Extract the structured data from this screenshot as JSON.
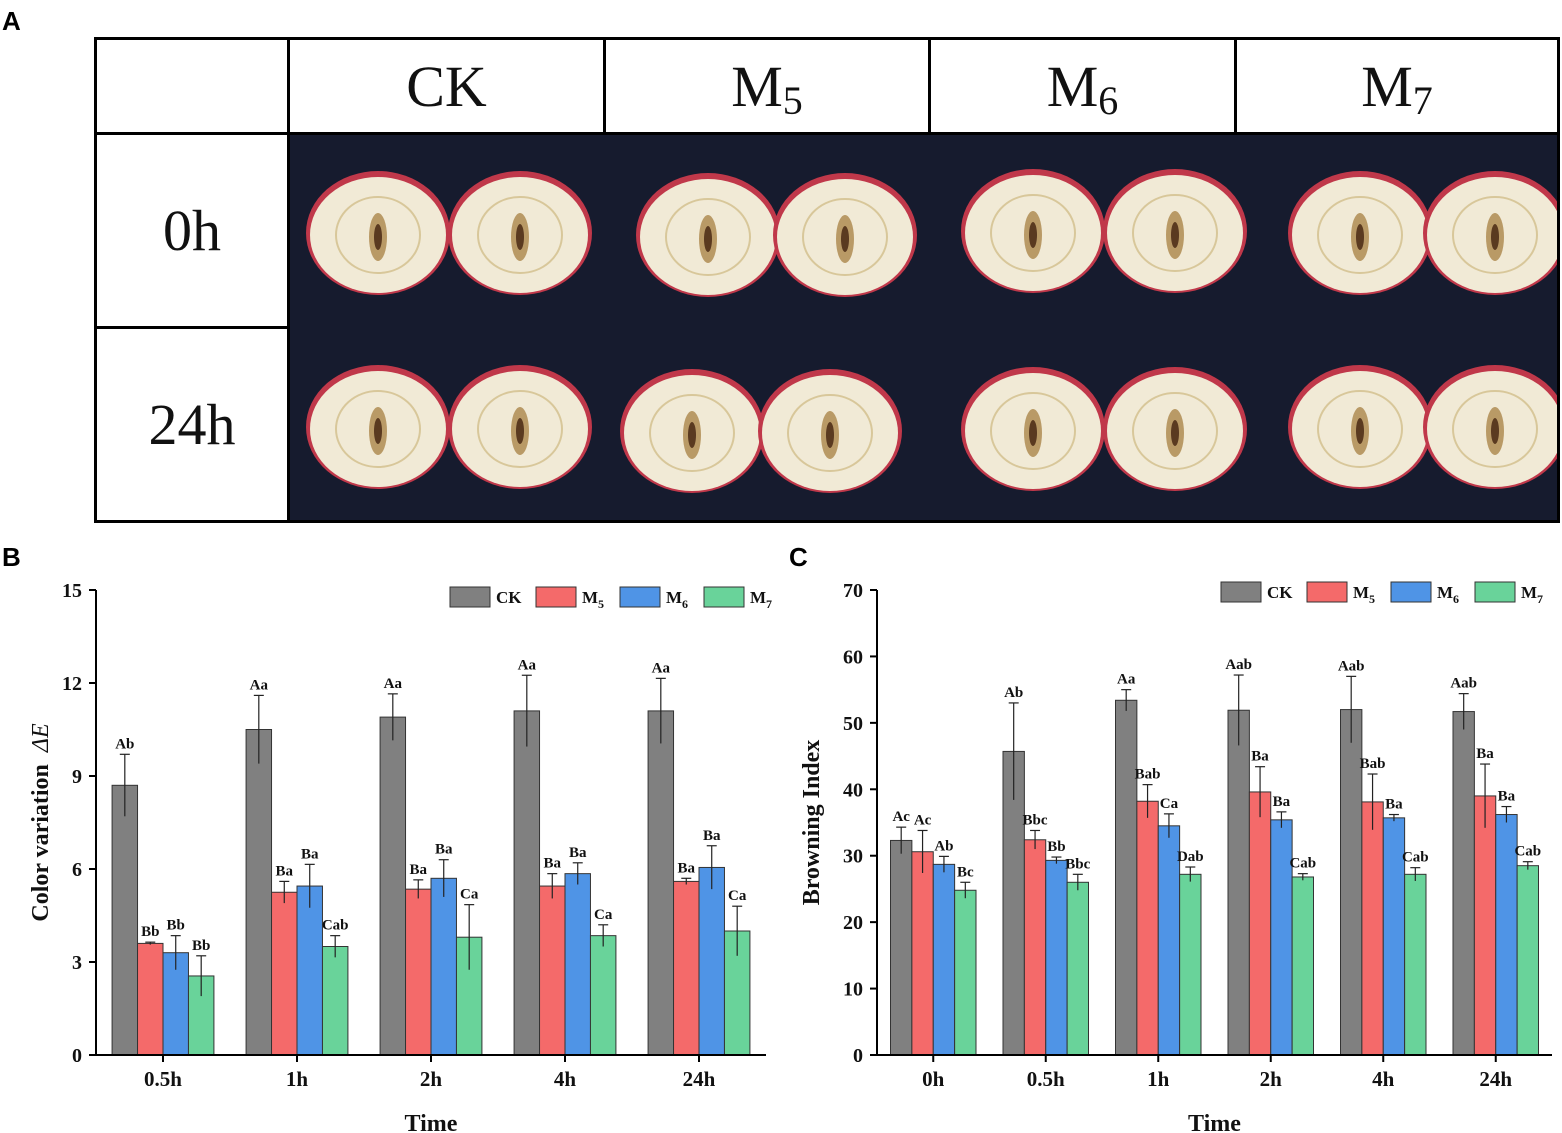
{
  "panels": {
    "a": "A",
    "b": "B",
    "c": "C"
  },
  "photo_table": {
    "columns": [
      "CK",
      "M5",
      "M6",
      "M7"
    ],
    "column_subscripts": [
      "",
      "5",
      "6",
      "7"
    ],
    "column_bases": [
      "CK",
      "M",
      "M",
      "M"
    ],
    "rows": [
      "0h",
      "24h"
    ],
    "colors": {
      "background": "#161b2e",
      "flesh": "#f1ead6",
      "skin": "#c0384a"
    }
  },
  "legend": {
    "entries": [
      {
        "base": "CK",
        "sub": ""
      },
      {
        "base": "M",
        "sub": "5"
      },
      {
        "base": "M",
        "sub": "6"
      },
      {
        "base": "M",
        "sub": "7"
      }
    ],
    "colors": [
      "#808080",
      "#f46a6a",
      "#4f94e6",
      "#69d39a"
    ]
  },
  "chart_data": [
    {
      "type": "bar",
      "panel": "B",
      "title": "",
      "xlabel": "Time",
      "ylabel": "Color variation",
      "ylabel_symbol": "ΔE",
      "ylim": [
        0,
        15
      ],
      "yticks": [
        0,
        3,
        6,
        9,
        12,
        15
      ],
      "categories": [
        "0.5h",
        "1h",
        "2h",
        "4h",
        "24h"
      ],
      "legend_position": "top-right",
      "series": [
        {
          "name": "CK",
          "values": [
            8.7,
            10.5,
            10.9,
            11.1,
            11.1
          ],
          "errors": [
            1.0,
            1.1,
            0.75,
            1.15,
            1.05
          ],
          "labels": [
            "Ab",
            "Aa",
            "Aa",
            "Aa",
            "Aa"
          ]
        },
        {
          "name": "M5",
          "values": [
            3.6,
            5.25,
            5.35,
            5.45,
            5.6
          ],
          "errors": [
            0.04,
            0.35,
            0.3,
            0.4,
            0.1
          ],
          "labels": [
            "Bb",
            "Ba",
            "Ba",
            "Ba",
            "Ba"
          ]
        },
        {
          "name": "M6",
          "values": [
            3.3,
            5.45,
            5.7,
            5.85,
            6.05
          ],
          "errors": [
            0.55,
            0.7,
            0.6,
            0.35,
            0.7
          ],
          "labels": [
            "Bb",
            "Ba",
            "Ba",
            "Ba",
            "Ba"
          ]
        },
        {
          "name": "M7",
          "values": [
            2.55,
            3.5,
            3.8,
            3.85,
            4.0
          ],
          "errors": [
            0.65,
            0.35,
            1.05,
            0.35,
            0.8
          ],
          "labels": [
            "Bb",
            "Cab",
            "Ca",
            "Ca",
            "Ca"
          ]
        }
      ]
    },
    {
      "type": "bar",
      "panel": "C",
      "title": "",
      "xlabel": "Time",
      "ylabel": "Browning Index",
      "ylim": [
        0,
        70
      ],
      "yticks": [
        0,
        10,
        20,
        30,
        40,
        50,
        60,
        70
      ],
      "categories": [
        "0h",
        "0.5h",
        "1h",
        "2h",
        "4h",
        "24h"
      ],
      "legend_position": "top-right",
      "series": [
        {
          "name": "CK",
          "values": [
            32.3,
            45.7,
            53.4,
            51.9,
            52.0,
            51.7
          ],
          "errors": [
            2.0,
            7.3,
            1.6,
            5.3,
            5.0,
            2.7
          ],
          "labels": [
            "Ac",
            "Ab",
            "Aa",
            "Aab",
            "Aab",
            "Aab"
          ]
        },
        {
          "name": "M5",
          "values": [
            30.6,
            32.4,
            38.2,
            39.6,
            38.1,
            39.0
          ],
          "errors": [
            3.2,
            1.4,
            2.5,
            3.8,
            4.2,
            4.8
          ],
          "labels": [
            "Ac",
            "Bbc",
            "Bab",
            "Ba",
            "Bab",
            "Ba"
          ]
        },
        {
          "name": "M6",
          "values": [
            28.7,
            29.3,
            34.5,
            35.4,
            35.7,
            36.2
          ],
          "errors": [
            1.2,
            0.5,
            1.8,
            1.2,
            0.5,
            1.2
          ],
          "labels": [
            "Ab",
            "Bb",
            "Ca",
            "Ba",
            "Ba",
            "Ba"
          ]
        },
        {
          "name": "M7",
          "values": [
            24.8,
            26.0,
            27.2,
            26.8,
            27.2,
            28.5
          ],
          "errors": [
            1.2,
            1.2,
            1.1,
            0.5,
            1.0,
            0.6
          ],
          "labels": [
            "Bc",
            "Bbc",
            "Dab",
            "Cab",
            "Cab",
            "Cab"
          ]
        }
      ]
    }
  ]
}
